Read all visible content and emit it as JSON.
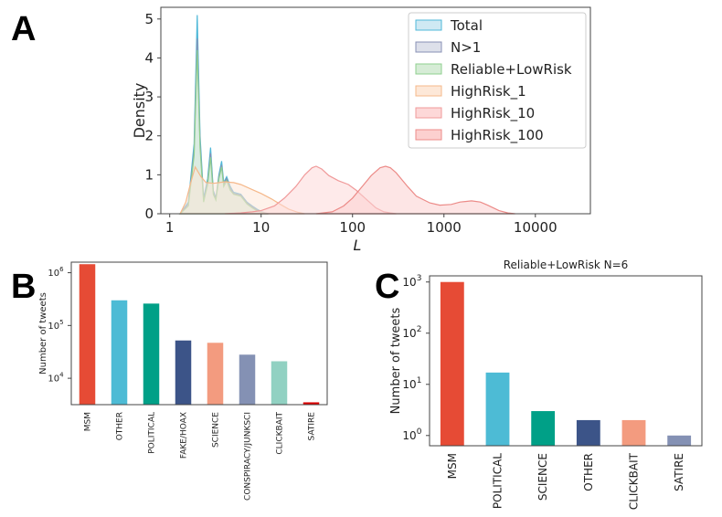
{
  "panels": {
    "a": {
      "letter": "A"
    },
    "b": {
      "letter": "B"
    },
    "c": {
      "letter": "C"
    }
  },
  "chart_data": [
    {
      "id": "A",
      "type": "area",
      "title": "",
      "xlabel": "L",
      "ylabel": "Density",
      "xscale": "log",
      "xlim": [
        0.8,
        40000
      ],
      "ylim": [
        0,
        5.3
      ],
      "xticks": [
        1,
        10,
        100,
        1000,
        10000
      ],
      "xtick_labels": [
        "1",
        "10",
        "100",
        "1000",
        "10000"
      ],
      "yticks": [
        0,
        1,
        2,
        3,
        4,
        5
      ],
      "ytick_labels": [
        "0",
        "1",
        "2",
        "3",
        "4",
        "5"
      ],
      "legend_position": "top-right",
      "series": [
        {
          "name": "Total",
          "fill": "#cfe9f3",
          "stroke": "#4fb8d8",
          "x": [
            1.3,
            1.6,
            1.85,
            2.0,
            2.15,
            2.35,
            2.6,
            2.8,
            3.0,
            3.2,
            3.45,
            3.7,
            3.9,
            4.2,
            4.6,
            5,
            6,
            7,
            8,
            9,
            10,
            11,
            12
          ],
          "y": [
            0,
            0.3,
            1.8,
            5.1,
            2.0,
            0.4,
            0.9,
            1.7,
            0.6,
            0.4,
            1.0,
            1.35,
            0.8,
            0.95,
            0.7,
            0.55,
            0.5,
            0.3,
            0.2,
            0.12,
            0.06,
            0.02,
            0
          ]
        },
        {
          "name": "N>1",
          "fill": "#dde0ea",
          "stroke": "#8890b5",
          "x": [
            1.3,
            1.6,
            1.85,
            2.0,
            2.15,
            2.35,
            2.6,
            2.8,
            3.0,
            3.2,
            3.45,
            3.7,
            3.9,
            4.2,
            4.6,
            5,
            6,
            7,
            8,
            9,
            10,
            11,
            12
          ],
          "y": [
            0,
            0.25,
            1.6,
            4.5,
            1.8,
            0.35,
            0.8,
            1.55,
            0.55,
            0.38,
            0.95,
            1.25,
            0.75,
            0.9,
            0.65,
            0.52,
            0.48,
            0.28,
            0.18,
            0.1,
            0.05,
            0.02,
            0
          ]
        },
        {
          "name": "Reliable+LowRisk",
          "fill": "#d6ecd6",
          "stroke": "#8fcf8f",
          "x": [
            1.3,
            1.6,
            1.85,
            2.0,
            2.15,
            2.35,
            2.6,
            2.8,
            3.0,
            3.2,
            3.45,
            3.7,
            3.9,
            4.2,
            4.6,
            5,
            6,
            7,
            8,
            9,
            10,
            11,
            12
          ],
          "y": [
            0,
            0.2,
            1.5,
            4.2,
            1.7,
            0.3,
            0.75,
            1.45,
            0.5,
            0.35,
            0.9,
            1.2,
            0.7,
            0.85,
            0.6,
            0.5,
            0.45,
            0.25,
            0.15,
            0.08,
            0.04,
            0.01,
            0
          ]
        },
        {
          "name": "HighRisk_1",
          "fill": "#fde8d8",
          "stroke": "#f5b88a",
          "x": [
            1.3,
            1.5,
            1.7,
            1.9,
            2.2,
            2.5,
            3,
            3.5,
            4,
            5,
            6,
            8,
            10,
            13,
            16,
            20,
            25,
            30
          ],
          "y": [
            0,
            0.3,
            0.8,
            1.2,
            0.95,
            0.8,
            0.78,
            0.8,
            0.82,
            0.8,
            0.75,
            0.62,
            0.52,
            0.38,
            0.25,
            0.12,
            0.04,
            0
          ]
        },
        {
          "name": "HighRisk_10",
          "fill": "#fdd8d8",
          "stroke": "#f09a9a",
          "x": [
            4,
            6,
            8,
            10,
            14,
            18,
            24,
            30,
            36,
            40,
            46,
            55,
            70,
            90,
            110,
            140,
            180,
            220,
            260,
            300
          ],
          "y": [
            0,
            0.02,
            0.05,
            0.08,
            0.2,
            0.4,
            0.7,
            1.0,
            1.18,
            1.22,
            1.15,
            0.98,
            0.85,
            0.75,
            0.6,
            0.38,
            0.15,
            0.05,
            0.02,
            0
          ]
        },
        {
          "name": "HighRisk_100",
          "fill": "#fcd0cf",
          "stroke": "#ec8b88",
          "x": [
            40,
            60,
            80,
            100,
            130,
            160,
            200,
            230,
            260,
            300,
            400,
            500,
            700,
            900,
            1200,
            1500,
            2000,
            2500,
            3000,
            4000,
            5000,
            6000
          ],
          "y": [
            0,
            0.05,
            0.2,
            0.4,
            0.72,
            0.98,
            1.18,
            1.22,
            1.18,
            1.05,
            0.7,
            0.45,
            0.28,
            0.22,
            0.24,
            0.3,
            0.33,
            0.3,
            0.22,
            0.08,
            0.02,
            0
          ]
        }
      ]
    },
    {
      "id": "B",
      "type": "bar",
      "title": "",
      "xlabel": "",
      "ylabel": "Number of tweets",
      "yscale": "log",
      "ylim_exp": [
        3.5,
        6.2
      ],
      "yticks_exp": [
        4,
        5,
        6
      ],
      "ytick_labels": [
        "10",
        "10",
        "10"
      ],
      "ytick_sup": [
        "4",
        "5",
        "6"
      ],
      "categories": [
        "MSM",
        "OTHER",
        "POLITICAL",
        "FAKE/HOAX",
        "SCIENCE",
        "CONSPIRACY/JUNKSCI",
        "CLICKBAIT",
        "SATIRE"
      ],
      "values": [
        1450000,
        300000,
        260000,
        52000,
        47000,
        28000,
        21000,
        3500
      ],
      "colors": [
        "#e64b35",
        "#4dbbd5",
        "#00a087",
        "#3c5488",
        "#f39b7f",
        "#8491b4",
        "#91d1c2",
        "#dc0000"
      ]
    },
    {
      "id": "C",
      "type": "bar",
      "title": "Reliable+LowRisk N=6",
      "xlabel": "",
      "ylabel": "Number of tweets",
      "yscale": "log",
      "ylim_exp": [
        -0.2,
        3.12
      ],
      "yticks_exp": [
        0,
        1,
        2,
        3
      ],
      "ytick_labels": [
        "10",
        "10",
        "10",
        "10"
      ],
      "ytick_sup": [
        "0",
        "1",
        "2",
        "3"
      ],
      "categories": [
        "MSM",
        "POLITICAL",
        "SCIENCE",
        "OTHER",
        "CLICKBAIT",
        "SATIRE"
      ],
      "values": [
        1000,
        17,
        3,
        2,
        2,
        1
      ],
      "colors": [
        "#e64b35",
        "#4dbbd5",
        "#00a087",
        "#3c5488",
        "#f39b7f",
        "#8491b4"
      ]
    }
  ]
}
